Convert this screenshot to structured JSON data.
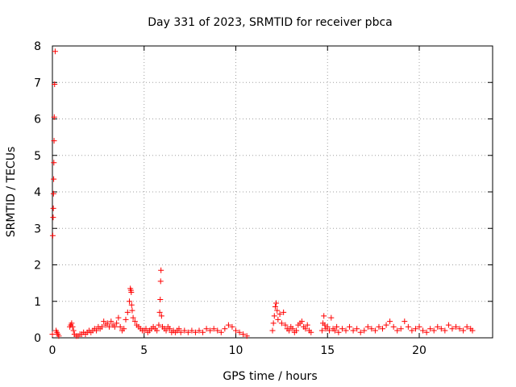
{
  "chart_data": {
    "type": "scatter",
    "title": "Day 331 of 2023, SRMTID for receiver pbca",
    "xlabel": "GPS time / hours",
    "ylabel": "SRMTID / TECUs",
    "xlim": [
      0,
      24
    ],
    "ylim": [
      0,
      8
    ],
    "x_ticks": [
      0,
      5,
      10,
      15,
      20
    ],
    "x_tick_labels": [
      "0",
      "5",
      "10",
      "15",
      "20"
    ],
    "y_ticks": [
      0,
      1,
      2,
      3,
      4,
      5,
      6,
      7,
      8
    ],
    "y_tick_labels": [
      "0",
      "1",
      "2",
      "3",
      "4",
      "5",
      "6",
      "7",
      "8"
    ],
    "grid": true,
    "marker": "+",
    "series": [
      {
        "color": "#ff0000",
        "x": [
          0.0,
          0.02,
          0.04,
          0.05,
          0.06,
          0.07,
          0.08,
          0.09,
          0.1,
          0.12,
          0.15,
          0.2,
          0.25,
          0.3,
          0.35,
          0.95,
          1.0,
          1.05,
          1.1,
          1.15,
          1.2,
          1.3,
          1.4,
          1.5,
          1.6,
          1.7,
          1.8,
          1.9,
          2.0,
          2.1,
          2.2,
          2.3,
          2.4,
          2.5,
          2.6,
          2.7,
          2.8,
          2.9,
          3.0,
          3.1,
          3.2,
          3.3,
          3.4,
          3.5,
          3.6,
          3.7,
          3.8,
          3.9,
          4.0,
          4.1,
          4.2,
          4.25,
          4.28,
          4.3,
          4.32,
          4.35,
          4.4,
          4.5,
          4.6,
          4.7,
          4.8,
          4.9,
          5.0,
          5.1,
          5.2,
          5.3,
          5.4,
          5.5,
          5.6,
          5.7,
          5.8,
          5.85,
          5.88,
          5.9,
          5.92,
          5.95,
          6.0,
          6.1,
          6.2,
          6.3,
          6.4,
          6.5,
          6.6,
          6.7,
          6.8,
          6.9,
          7.0,
          7.2,
          7.4,
          7.6,
          7.8,
          8.0,
          8.2,
          8.4,
          8.6,
          8.8,
          9.0,
          9.2,
          9.4,
          9.6,
          9.8,
          10.0,
          10.2,
          10.4,
          10.6,
          12.0,
          12.05,
          12.1,
          12.15,
          12.2,
          12.25,
          12.3,
          12.4,
          12.5,
          12.6,
          12.7,
          12.8,
          12.9,
          13.0,
          13.1,
          13.2,
          13.3,
          13.4,
          13.5,
          13.6,
          13.7,
          13.8,
          13.9,
          14.0,
          14.1,
          14.7,
          14.75,
          14.8,
          14.85,
          14.9,
          15.0,
          15.1,
          15.2,
          15.3,
          15.4,
          15.5,
          15.6,
          15.8,
          16.0,
          16.2,
          16.4,
          16.6,
          16.8,
          17.0,
          17.2,
          17.4,
          17.6,
          17.8,
          18.0,
          18.2,
          18.4,
          18.6,
          18.8,
          19.0,
          19.2,
          19.4,
          19.6,
          19.8,
          20.0,
          20.2,
          20.4,
          20.6,
          20.8,
          21.0,
          21.2,
          21.4,
          21.6,
          21.8,
          22.0,
          22.2,
          22.4,
          22.6,
          22.8,
          22.9
        ],
        "y": [
          0.1,
          2.8,
          3.3,
          3.55,
          3.95,
          4.35,
          4.8,
          5.4,
          6.05,
          6.95,
          7.85,
          0.2,
          0.15,
          0.1,
          0.05,
          0.3,
          0.35,
          0.4,
          0.3,
          0.2,
          0.1,
          0.05,
          0.05,
          0.1,
          0.1,
          0.15,
          0.1,
          0.15,
          0.2,
          0.15,
          0.2,
          0.25,
          0.2,
          0.3,
          0.25,
          0.3,
          0.45,
          0.35,
          0.4,
          0.3,
          0.45,
          0.35,
          0.3,
          0.4,
          0.55,
          0.3,
          0.2,
          0.25,
          0.5,
          0.7,
          1.0,
          1.35,
          1.3,
          1.25,
          0.9,
          0.75,
          0.55,
          0.45,
          0.35,
          0.3,
          0.25,
          0.2,
          0.2,
          0.25,
          0.15,
          0.2,
          0.25,
          0.3,
          0.25,
          0.2,
          0.35,
          0.7,
          1.05,
          1.55,
          1.85,
          0.6,
          0.3,
          0.25,
          0.2,
          0.3,
          0.25,
          0.15,
          0.2,
          0.15,
          0.2,
          0.25,
          0.15,
          0.2,
          0.15,
          0.2,
          0.15,
          0.2,
          0.15,
          0.25,
          0.2,
          0.25,
          0.2,
          0.15,
          0.25,
          0.35,
          0.3,
          0.2,
          0.15,
          0.1,
          0.05,
          0.2,
          0.4,
          0.6,
          0.85,
          0.95,
          0.75,
          0.5,
          0.65,
          0.4,
          0.7,
          0.35,
          0.25,
          0.2,
          0.3,
          0.25,
          0.15,
          0.2,
          0.35,
          0.4,
          0.45,
          0.3,
          0.25,
          0.35,
          0.2,
          0.15,
          0.2,
          0.4,
          0.6,
          0.35,
          0.25,
          0.3,
          0.2,
          0.55,
          0.25,
          0.2,
          0.3,
          0.15,
          0.25,
          0.2,
          0.3,
          0.2,
          0.25,
          0.15,
          0.2,
          0.3,
          0.25,
          0.2,
          0.3,
          0.25,
          0.35,
          0.45,
          0.3,
          0.2,
          0.25,
          0.45,
          0.3,
          0.2,
          0.25,
          0.3,
          0.2,
          0.15,
          0.25,
          0.2,
          0.3,
          0.25,
          0.2,
          0.35,
          0.25,
          0.3,
          0.25,
          0.2,
          0.3,
          0.25,
          0.2
        ]
      }
    ]
  }
}
